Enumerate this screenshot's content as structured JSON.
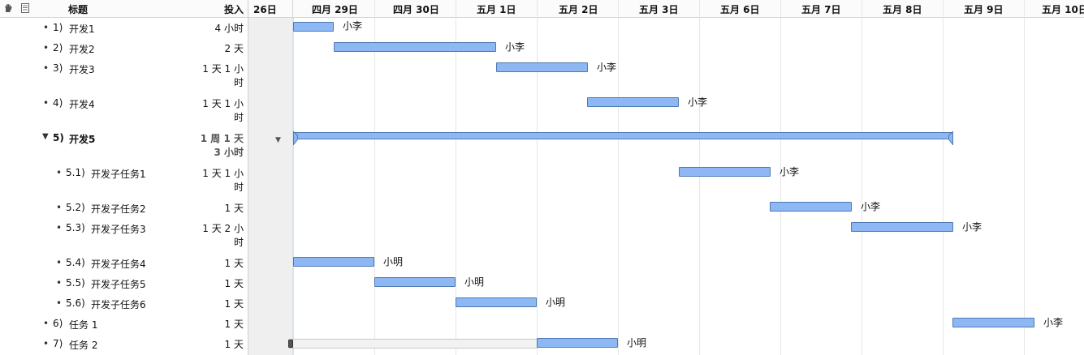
{
  "header": {
    "title_label": "标题",
    "effort_label": "投入",
    "dates": [
      "26日",
      "四月 29日",
      "四月 30日",
      "五月 1日",
      "五月 2日",
      "五月 3日",
      "五月 6日",
      "五月 7日",
      "五月 8日",
      "五月 9日",
      "五月 10日"
    ]
  },
  "tasks": [
    {
      "num": "1)",
      "title": "开发1",
      "effort": "4 小时",
      "resource": "小李"
    },
    {
      "num": "2)",
      "title": "开发2",
      "effort": "2 天",
      "resource": "小李"
    },
    {
      "num": "3)",
      "title": "开发3",
      "effort": "1 天 1 小时",
      "resource": "小李"
    },
    {
      "num": "4)",
      "title": "开发4",
      "effort": "1 天 1 小时",
      "resource": "小李"
    },
    {
      "num": "5)",
      "title": "开发5",
      "effort": "1 周 1 天 3 小时",
      "resource": ""
    },
    {
      "num": "5.1)",
      "title": "开发子任务1",
      "effort": "1 天 1 小时",
      "resource": "小李"
    },
    {
      "num": "5.2)",
      "title": "开发子任务2",
      "effort": "1 天",
      "resource": "小李"
    },
    {
      "num": "5.3)",
      "title": "开发子任务3",
      "effort": "1 天 2 小时",
      "resource": "小李"
    },
    {
      "num": "5.4)",
      "title": "开发子任务4",
      "effort": "1 天",
      "resource": "小明"
    },
    {
      "num": "5.5)",
      "title": "开发子任务5",
      "effort": "1 天",
      "resource": "小明"
    },
    {
      "num": "5.6)",
      "title": "开发子任务6",
      "effort": "1 天",
      "resource": "小明"
    },
    {
      "num": "6)",
      "title": "任务 1",
      "effort": "1 天",
      "resource": "小李"
    },
    {
      "num": "7)",
      "title": "任务 2",
      "effort": "1 天",
      "resource": "小明"
    }
  ],
  "icons": {
    "hand": "hand-icon",
    "notes": "notes-icon",
    "bullet": "bullet-icon",
    "disclosure": "disclosure-triangle-icon",
    "row_menu": "row-menu-icon",
    "progress_knob": "progress-knob-icon"
  },
  "colors": {
    "bar_fill": "#8db8f4",
    "bar_border": "#4f79b0",
    "today_band": "#efefef"
  }
}
